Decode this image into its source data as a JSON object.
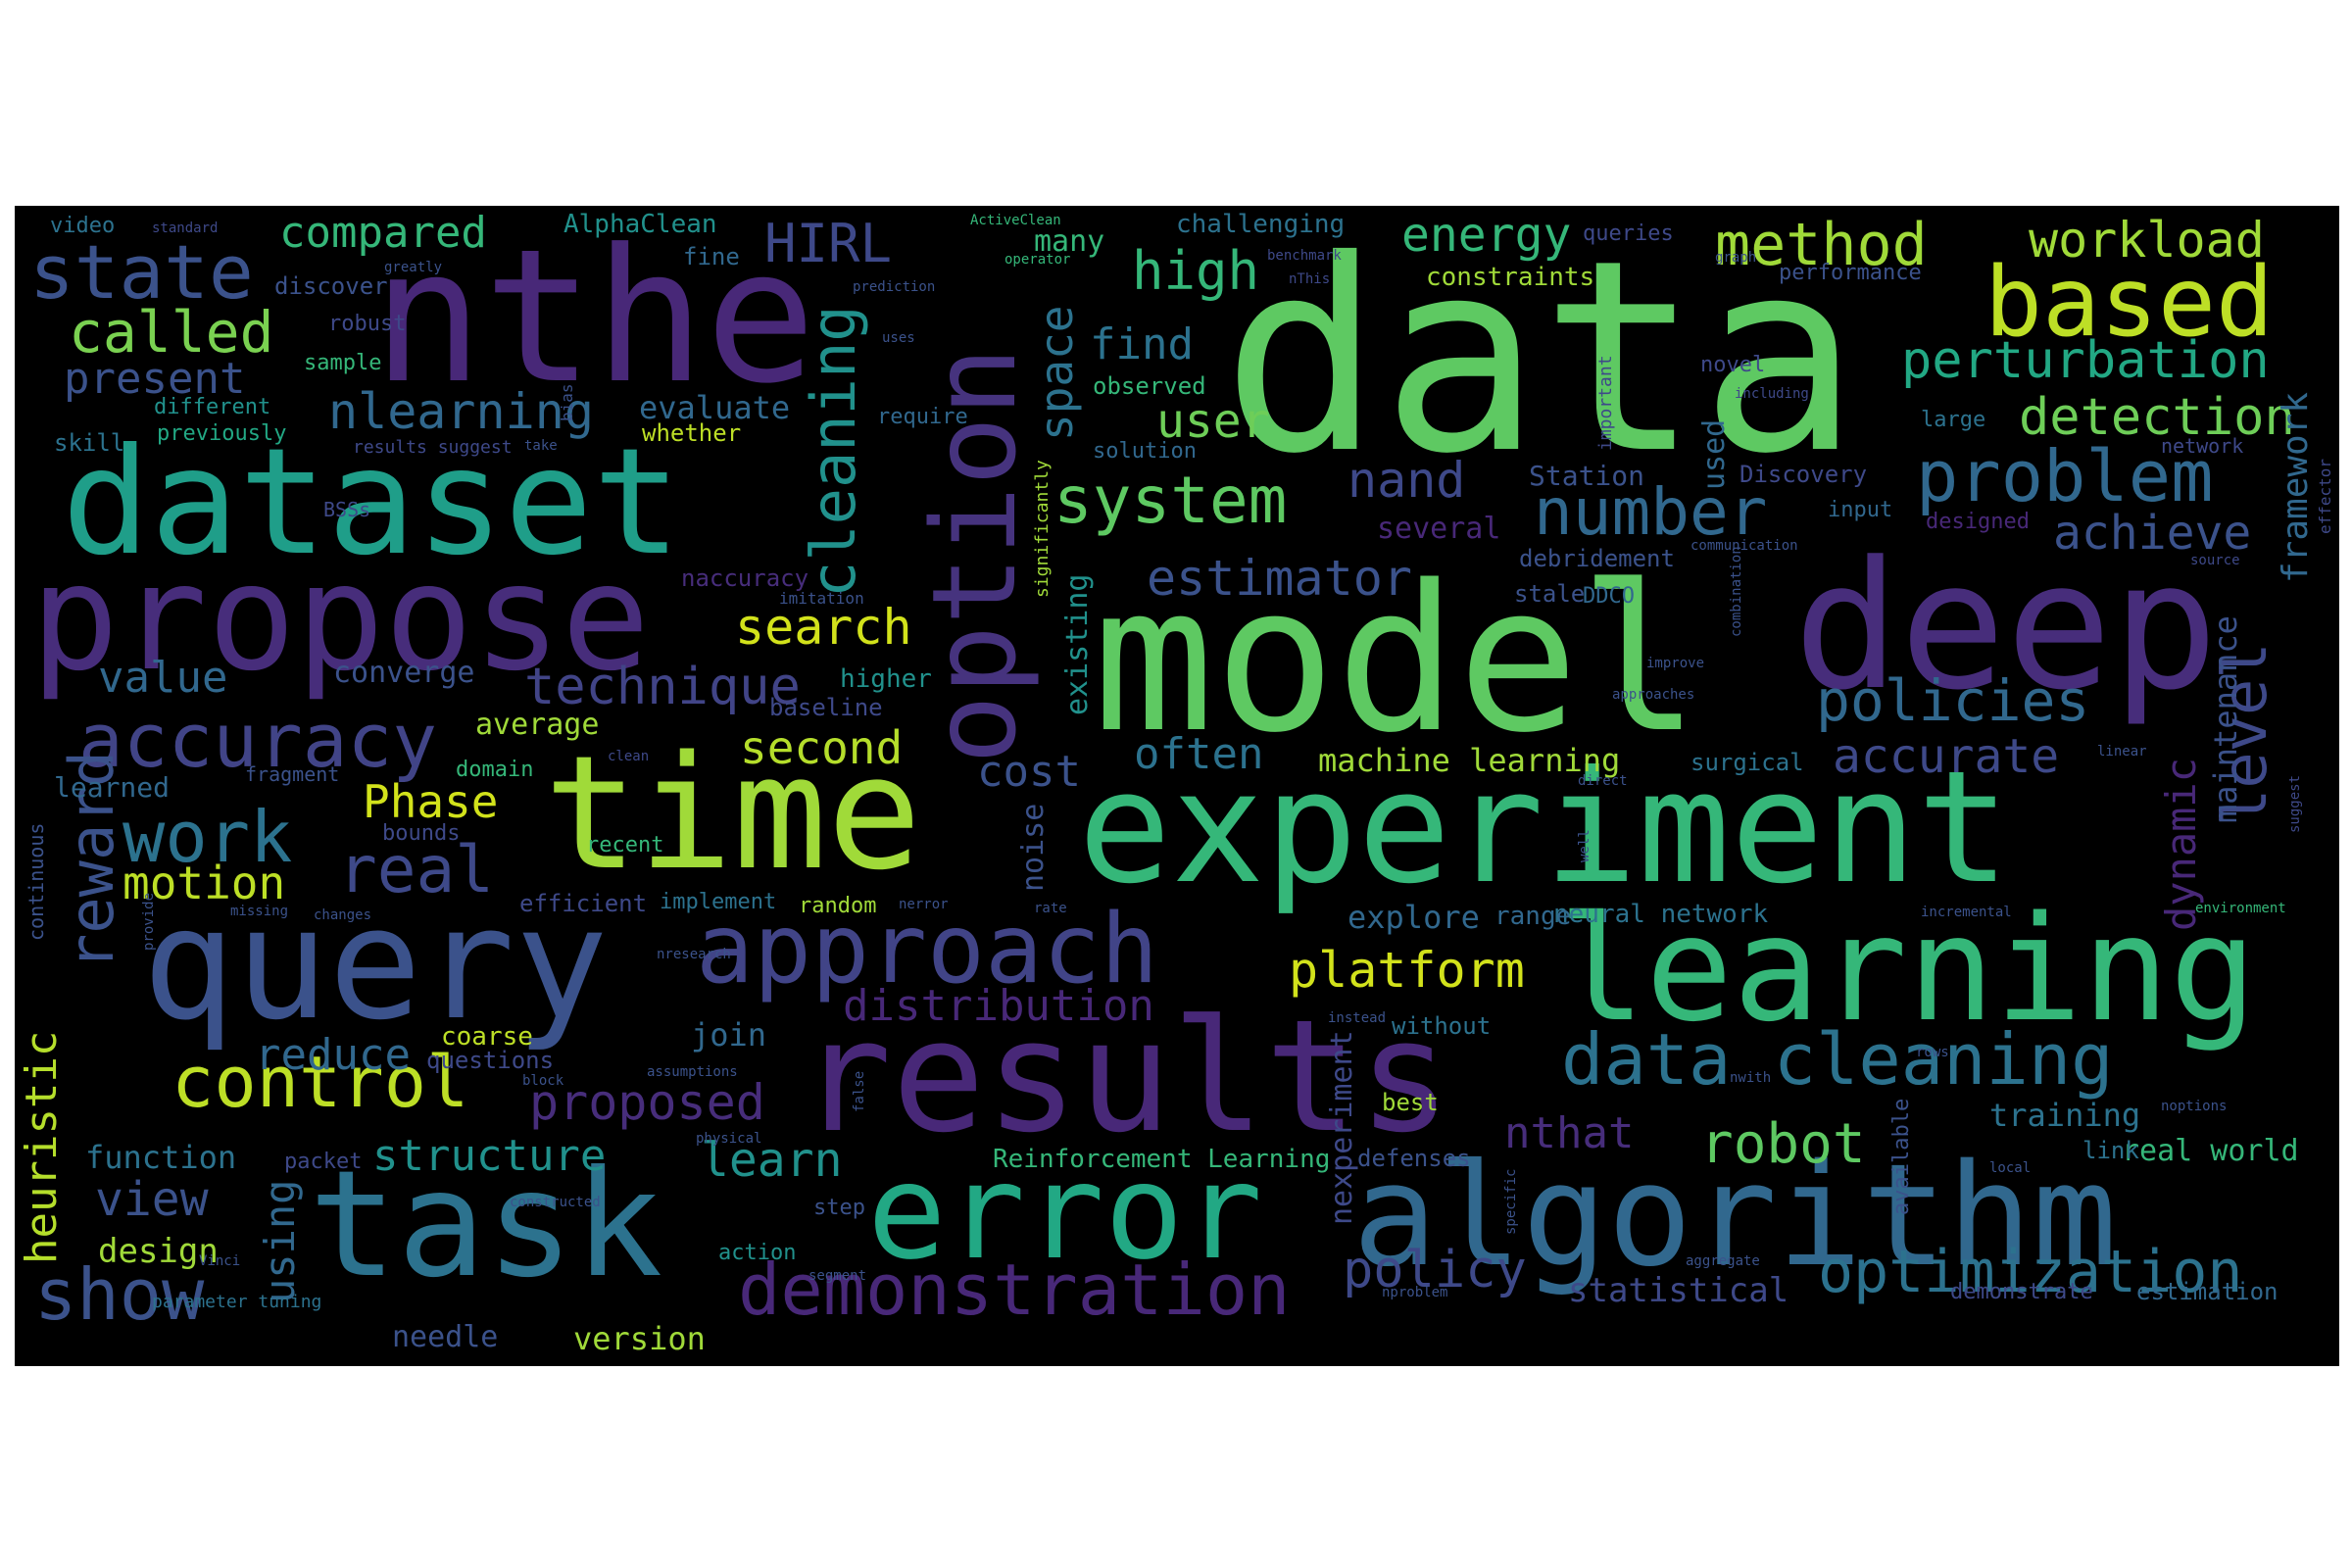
{
  "words": [
    {
      "t": "data",
      "c": "#5ec962"
    },
    {
      "t": "nthe",
      "c": "#482878"
    },
    {
      "t": "dataset",
      "c": "#1f9e89"
    },
    {
      "t": "propose",
      "c": "#472d7b"
    },
    {
      "t": "model",
      "c": "#5ec962"
    },
    {
      "t": "deep",
      "c": "#472d7b"
    },
    {
      "t": "time",
      "c": "#a0da39"
    },
    {
      "t": "experiment",
      "c": "#35b779"
    },
    {
      "t": "query",
      "c": "#3b528b"
    },
    {
      "t": "results",
      "c": "#482878"
    },
    {
      "t": "learning",
      "c": "#35b779"
    },
    {
      "t": "task",
      "c": "#2c728e"
    },
    {
      "t": "error",
      "c": "#22a884"
    },
    {
      "t": "algorithm",
      "c": "#31688e"
    },
    {
      "t": "option",
      "c": "#46337e"
    },
    {
      "t": "approach",
      "c": "#414487"
    },
    {
      "t": "based",
      "c": "#bddf26"
    },
    {
      "t": "state",
      "c": "#3b528b"
    },
    {
      "t": "accuracy",
      "c": "#414487"
    },
    {
      "t": "work",
      "c": "#2c728e"
    },
    {
      "t": "demonstration",
      "c": "#482878"
    },
    {
      "t": "data cleaning",
      "c": "#2c728e"
    },
    {
      "t": "control",
      "c": "#bddf26"
    },
    {
      "t": "show",
      "c": "#3b528b"
    },
    {
      "t": "optimization",
      "c": "#2c728e"
    },
    {
      "t": "problem",
      "c": "#31688e"
    },
    {
      "t": "system",
      "c": "#5ec962"
    },
    {
      "t": "number",
      "c": "#31688e"
    },
    {
      "t": "method",
      "c": "#a0da39"
    },
    {
      "t": "perturbation",
      "c": "#22a884"
    },
    {
      "t": "detection",
      "c": "#6ece58"
    },
    {
      "t": "policies",
      "c": "#31688e"
    },
    {
      "t": "cleaning",
      "c": "#21918c"
    },
    {
      "t": "technique",
      "c": "#414487"
    },
    {
      "t": "called",
      "c": "#7ad151"
    },
    {
      "t": "real",
      "c": "#3e4989"
    },
    {
      "t": "reward",
      "c": "#3b528b"
    },
    {
      "t": "level",
      "c": "#3e4989"
    },
    {
      "t": "workload",
      "c": "#a0da39"
    },
    {
      "t": "estimator",
      "c": "#3b528b"
    },
    {
      "t": "search",
      "c": "#d2e21b"
    },
    {
      "t": "robot",
      "c": "#5ec962"
    },
    {
      "t": "nlearning",
      "c": "#31688e"
    },
    {
      "t": "compared",
      "c": "#35b779"
    },
    {
      "t": "HIRL",
      "c": "#3e4989"
    },
    {
      "t": "energy",
      "c": "#35b779"
    },
    {
      "t": "high",
      "c": "#35b779"
    },
    {
      "t": "find",
      "c": "#2c728e"
    },
    {
      "t": "space",
      "c": "#2c728e"
    },
    {
      "t": "user",
      "c": "#6ece58"
    },
    {
      "t": "nand",
      "c": "#3e4989"
    },
    {
      "t": "achieve",
      "c": "#3b528b"
    },
    {
      "t": "accurate",
      "c": "#3e4989"
    },
    {
      "t": "platform",
      "c": "#d2e21b"
    },
    {
      "t": "distribution",
      "c": "#482878"
    },
    {
      "t": "proposed",
      "c": "#472d7b"
    },
    {
      "t": "structure",
      "c": "#21918c"
    },
    {
      "t": "learn",
      "c": "#21918c"
    },
    {
      "t": "view",
      "c": "#3b528b"
    },
    {
      "t": "motion",
      "c": "#bddf26"
    },
    {
      "t": "Phase",
      "c": "#d2e21b"
    },
    {
      "t": "second",
      "c": "#b5de2b"
    },
    {
      "t": "cost",
      "c": "#3b528b"
    },
    {
      "t": "often",
      "c": "#2c728e"
    },
    {
      "t": "value",
      "c": "#31688e"
    },
    {
      "t": "present",
      "c": "#3b528b"
    },
    {
      "t": "reduce",
      "c": "#31688e"
    },
    {
      "t": "policy",
      "c": "#3e4989"
    },
    {
      "t": "nthat",
      "c": "#472d7b"
    },
    {
      "t": "heuristic",
      "c": "#b5de2b"
    },
    {
      "t": "using",
      "c": "#31688e"
    },
    {
      "t": "dynamic",
      "c": "#482878"
    },
    {
      "t": "framework",
      "c": "#31688e"
    },
    {
      "t": "maintenance",
      "c": "#3b528b"
    },
    {
      "t": "statistical",
      "c": "#3e4989"
    },
    {
      "t": "training",
      "c": "#2c728e"
    },
    {
      "t": "real world",
      "c": "#35b779"
    },
    {
      "t": "machine learning",
      "c": "#a0da39"
    },
    {
      "t": "surgical",
      "c": "#2c728e"
    },
    {
      "t": "neural network",
      "c": "#2c728e"
    },
    {
      "t": "Reinforcement Learning",
      "c": "#35b779"
    },
    {
      "t": "function",
      "c": "#2c728e"
    },
    {
      "t": "design",
      "c": "#a0da39"
    },
    {
      "t": "version",
      "c": "#a0da39"
    },
    {
      "t": "needle",
      "c": "#3b528b"
    },
    {
      "t": "join",
      "c": "#31688e"
    },
    {
      "t": "coarse",
      "c": "#bddf26"
    },
    {
      "t": "questions",
      "c": "#3e4989"
    },
    {
      "t": "explore",
      "c": "#31688e"
    },
    {
      "t": "range",
      "c": "#31688e"
    },
    {
      "t": "evaluate",
      "c": "#31688e"
    },
    {
      "t": "whether",
      "c": "#bddf26"
    },
    {
      "t": "converge",
      "c": "#3b528b"
    },
    {
      "t": "average",
      "c": "#a0da39"
    },
    {
      "t": "higher",
      "c": "#21918c"
    },
    {
      "t": "baseline",
      "c": "#3e4989"
    },
    {
      "t": "naccuracy",
      "c": "#472d7b"
    },
    {
      "t": "existing",
      "c": "#21918c"
    },
    {
      "t": "noise",
      "c": "#3b528b"
    },
    {
      "t": "nexperiment",
      "c": "#3e4989"
    },
    {
      "t": "used",
      "c": "#31688e"
    },
    {
      "t": "Station",
      "c": "#3b528b"
    },
    {
      "t": "Discovery",
      "c": "#3e4989"
    },
    {
      "t": "several",
      "c": "#482878"
    },
    {
      "t": "debridement",
      "c": "#3b528b"
    },
    {
      "t": "stale",
      "c": "#3b528b"
    },
    {
      "t": "DDCO",
      "c": "#31688e"
    },
    {
      "t": "constraints",
      "c": "#a0da39"
    },
    {
      "t": "queries",
      "c": "#3e4989"
    },
    {
      "t": "many",
      "c": "#35b779"
    },
    {
      "t": "challenging",
      "c": "#2c728e"
    },
    {
      "t": "AlphaClean",
      "c": "#21918c"
    },
    {
      "t": "video",
      "c": "#2c728e"
    },
    {
      "t": "discover",
      "c": "#3b528b"
    },
    {
      "t": "robust",
      "c": "#3e4989"
    },
    {
      "t": "sample",
      "c": "#35b779"
    },
    {
      "t": "different",
      "c": "#21918c"
    },
    {
      "t": "previously",
      "c": "#22a884"
    },
    {
      "t": "skill",
      "c": "#2c728e"
    },
    {
      "t": "fine",
      "c": "#31688e"
    },
    {
      "t": "require",
      "c": "#31688e"
    },
    {
      "t": "observed",
      "c": "#35b779"
    },
    {
      "t": "solution",
      "c": "#31688e"
    },
    {
      "t": "results suggest",
      "c": "#3e4989"
    },
    {
      "t": "learned",
      "c": "#31688e"
    },
    {
      "t": "fragment",
      "c": "#3b528b"
    },
    {
      "t": "domain",
      "c": "#35b779"
    },
    {
      "t": "bounds",
      "c": "#3e4989"
    },
    {
      "t": "recent",
      "c": "#35b779"
    },
    {
      "t": "efficient",
      "c": "#3e4989"
    },
    {
      "t": "implement",
      "c": "#2c728e"
    },
    {
      "t": "random",
      "c": "#a0da39"
    },
    {
      "t": "best",
      "c": "#a0da39"
    },
    {
      "t": "without",
      "c": "#2c728e"
    },
    {
      "t": "defenses",
      "c": "#3b528b"
    },
    {
      "t": "action",
      "c": "#21918c"
    },
    {
      "t": "step",
      "c": "#3b528b"
    },
    {
      "t": "packet",
      "c": "#3e4989"
    },
    {
      "t": "link",
      "c": "#2c728e"
    },
    {
      "t": "input",
      "c": "#31688e"
    },
    {
      "t": "designed",
      "c": "#482878"
    },
    {
      "t": "novel",
      "c": "#3e4989"
    },
    {
      "t": "large",
      "c": "#2c728e"
    },
    {
      "t": "network",
      "c": "#3e4989"
    },
    {
      "t": "performance",
      "c": "#3b528b"
    },
    {
      "t": "demonstrate",
      "c": "#3e4989"
    },
    {
      "t": "estimation",
      "c": "#31688e"
    },
    {
      "t": "continuous",
      "c": "#3b528b"
    },
    {
      "t": "parameter tuning",
      "c": "#2c728e"
    },
    {
      "t": "significantly",
      "c": "#a0da39"
    },
    {
      "t": "important",
      "c": "#3e4989"
    },
    {
      "t": "available",
      "c": "#3b528b"
    },
    {
      "t": "BSSs",
      "c": "#3e4989"
    },
    {
      "t": "imitation",
      "c": "#3b528b"
    },
    {
      "t": "standard",
      "c": "#3e4989"
    },
    {
      "t": "greatly",
      "c": "#3b528b"
    },
    {
      "t": "ActiveClean",
      "c": "#35b779"
    },
    {
      "t": "operator",
      "c": "#35b779"
    },
    {
      "t": "benchmark",
      "c": "#3e4989"
    },
    {
      "t": "nThis",
      "c": "#3e4989"
    },
    {
      "t": "graph",
      "c": "#3b528b"
    },
    {
      "t": "prediction",
      "c": "#3b528b"
    },
    {
      "t": "uses",
      "c": "#3b528b"
    },
    {
      "t": "including",
      "c": "#3e4989"
    },
    {
      "t": "take",
      "c": "#3b528b"
    },
    {
      "t": "bias",
      "c": "#3b528b"
    },
    {
      "t": "communication",
      "c": "#3b528b"
    },
    {
      "t": "combination",
      "c": "#3b528b"
    },
    {
      "t": "improve",
      "c": "#3b528b"
    },
    {
      "t": "approaches",
      "c": "#3b528b"
    },
    {
      "t": "source",
      "c": "#3e4989"
    },
    {
      "t": "effector",
      "c": "#3e4989"
    },
    {
      "t": "clean",
      "c": "#3e4989"
    },
    {
      "t": "direct",
      "c": "#3b528b"
    },
    {
      "t": "linear",
      "c": "#3b528b"
    },
    {
      "t": "suggest",
      "c": "#3e4989"
    },
    {
      "t": "incremental",
      "c": "#3b528b"
    },
    {
      "t": "environment",
      "c": "#35b779"
    },
    {
      "t": "nerror",
      "c": "#3b528b"
    },
    {
      "t": "rate",
      "c": "#3b528b"
    },
    {
      "t": "changes",
      "c": "#3b528b"
    },
    {
      "t": "missing",
      "c": "#3b528b"
    },
    {
      "t": "provide",
      "c": "#3b528b"
    },
    {
      "t": "nresearch",
      "c": "#3b528b"
    },
    {
      "t": "instead",
      "c": "#3b528b"
    },
    {
      "t": "rows",
      "c": "#3b528b"
    },
    {
      "t": "nwith",
      "c": "#3b528b"
    },
    {
      "t": "noptions",
      "c": "#3b528b"
    },
    {
      "t": "local",
      "c": "#3b528b"
    },
    {
      "t": "specific",
      "c": "#3b528b"
    },
    {
      "t": "assumptions",
      "c": "#3b528b"
    },
    {
      "t": "block",
      "c": "#3b528b"
    },
    {
      "t": "physical",
      "c": "#3b528b"
    },
    {
      "t": "false",
      "c": "#3b528b"
    },
    {
      "t": "constructed",
      "c": "#3b528b"
    },
    {
      "t": "segment",
      "c": "#3b528b"
    },
    {
      "t": "aggregate",
      "c": "#3b528b"
    },
    {
      "t": "nproblem",
      "c": "#3b528b"
    },
    {
      "t": "Vinci",
      "c": "#3b528b"
    },
    {
      "t": "well",
      "c": "#3b528b"
    }
  ]
}
